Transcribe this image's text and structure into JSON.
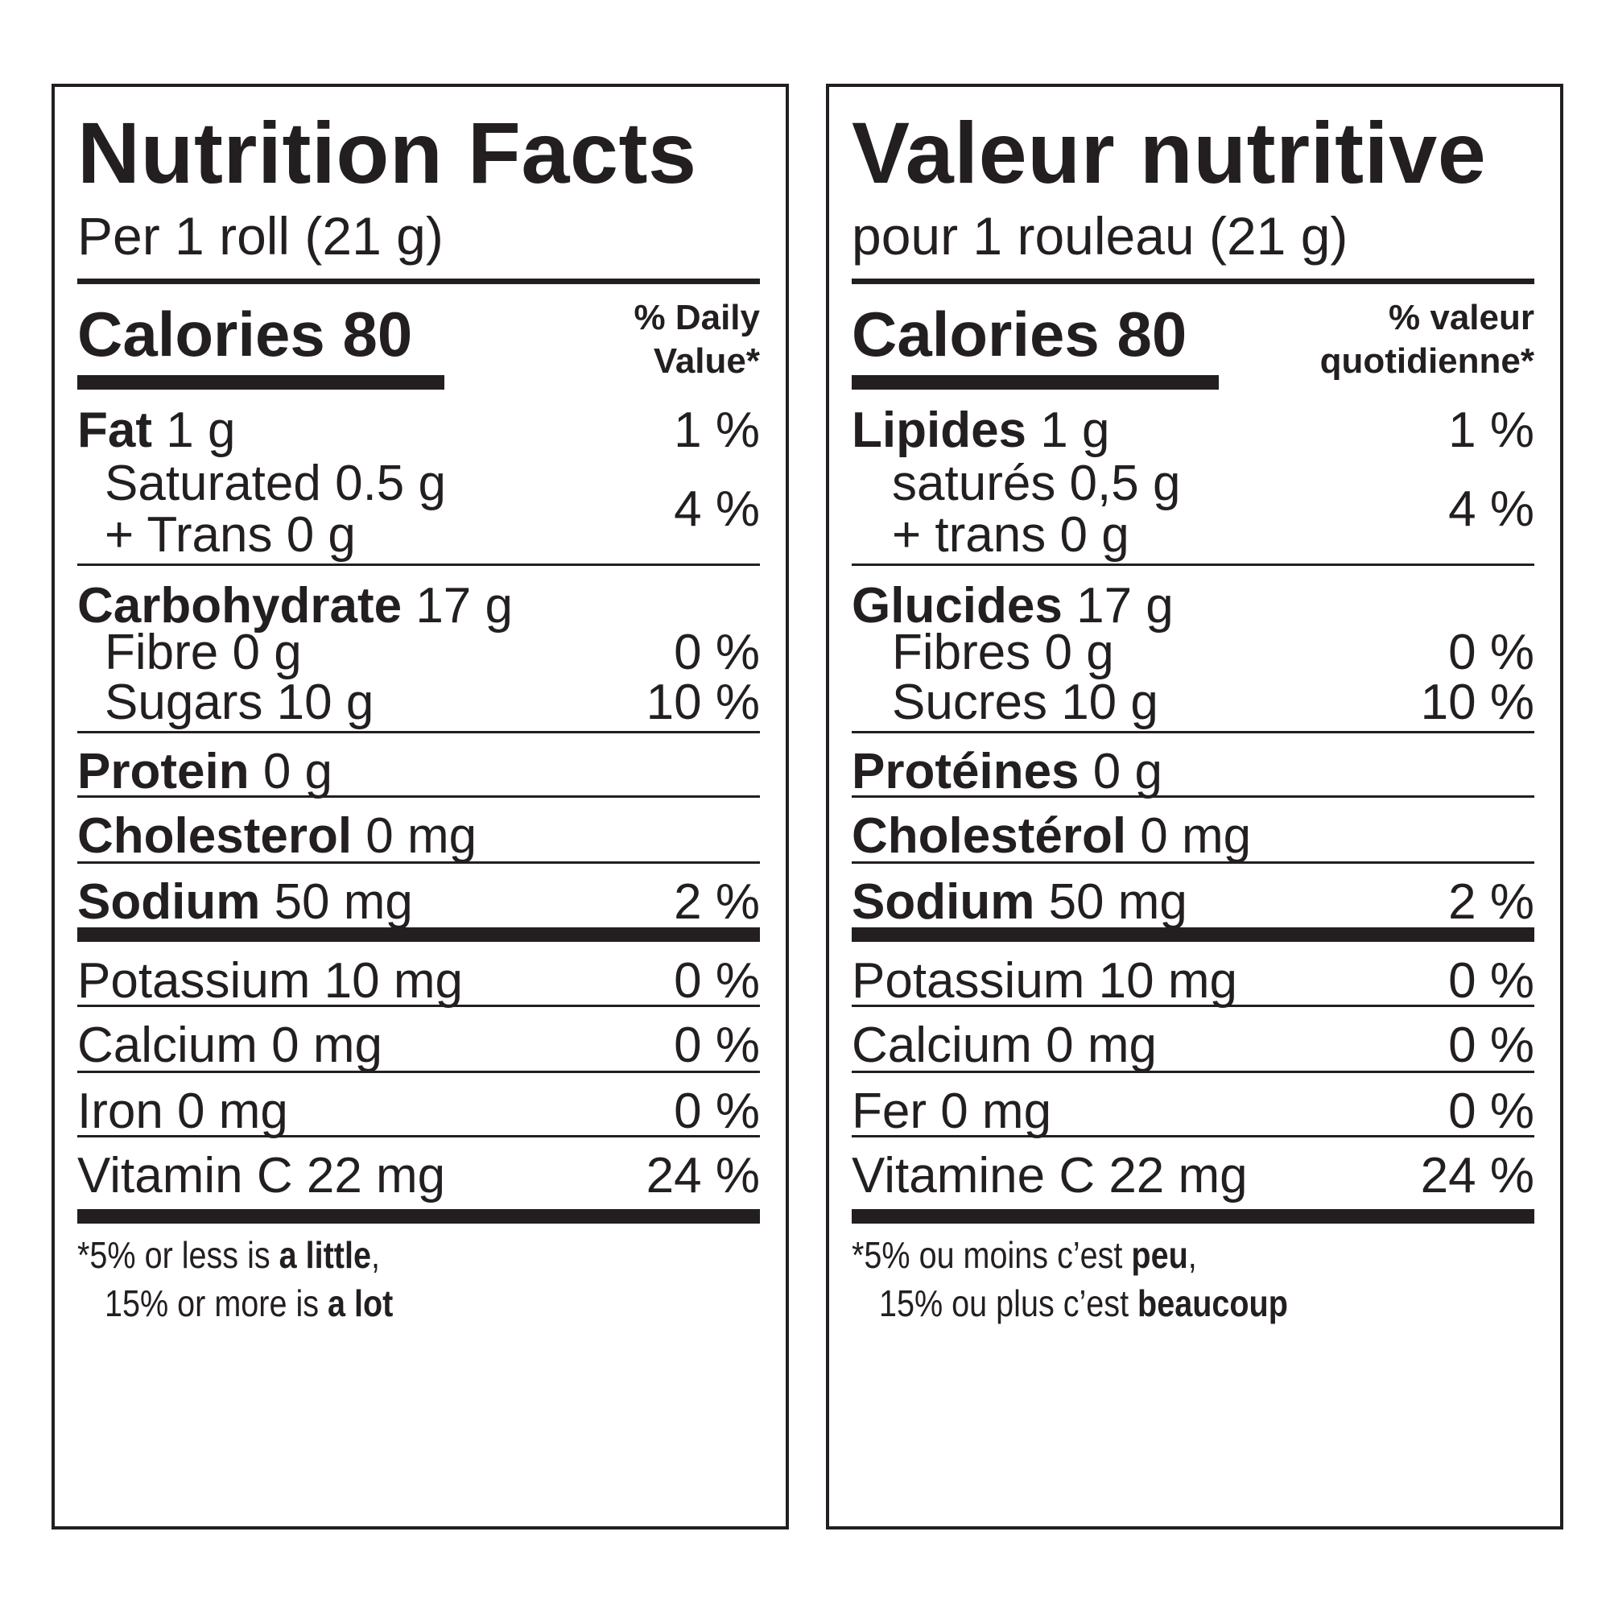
{
  "en": {
    "title": "Nutrition Facts",
    "serving": "Per 1 roll (21 g)",
    "calories": "Calories 80",
    "dv_header": [
      "% Daily",
      "Value*"
    ],
    "fat": {
      "label": "Fat",
      "amount": "1 g",
      "dv": "1 %"
    },
    "saturated": "Saturated 0.5 g",
    "trans": "+ Trans 0 g",
    "sat_trans_dv": "4 %",
    "carbohydrate": {
      "label": "Carbohydrate",
      "amount": "17 g"
    },
    "fibre": {
      "text": "Fibre 0 g",
      "dv": "0 %"
    },
    "sugars": {
      "text": "Sugars 10 g",
      "dv": "10 %"
    },
    "protein": {
      "label": "Protein",
      "amount": "0 g"
    },
    "cholesterol": {
      "label": "Cholesterol",
      "amount": "0 mg"
    },
    "sodium": {
      "label": "Sodium",
      "amount": "50 mg",
      "dv": "2 %"
    },
    "potassium": {
      "text": "Potassium 10 mg",
      "dv": "0 %"
    },
    "calcium": {
      "text": "Calcium 0 mg",
      "dv": "0 %"
    },
    "iron": {
      "text": "Iron 0 mg",
      "dv": "0 %"
    },
    "vitamin_c": {
      "text": "Vitamin C 22 mg",
      "dv": "24 %"
    },
    "footnote": {
      "l1_pre": "*5% or less is ",
      "l1_bold": "a little",
      "l1_post": ",",
      "l2_pre": "15% or more is ",
      "l2_bold": "a lot"
    }
  },
  "fr": {
    "title": "Valeur nutritive",
    "serving": "pour 1 rouleau (21 g)",
    "calories": "Calories 80",
    "dv_header": [
      "% valeur",
      "quotidienne*"
    ],
    "fat": {
      "label": "Lipides",
      "amount": "1 g",
      "dv": "1 %"
    },
    "saturated": "saturés 0,5 g",
    "trans": "+ trans 0 g",
    "sat_trans_dv": "4 %",
    "carbohydrate": {
      "label": "Glucides",
      "amount": "17 g"
    },
    "fibre": {
      "text": "Fibres 0 g",
      "dv": "0 %"
    },
    "sugars": {
      "text": "Sucres 10 g",
      "dv": "10 %"
    },
    "protein": {
      "label": "Protéines",
      "amount": "0 g"
    },
    "cholesterol": {
      "label": "Cholestérol",
      "amount": "0 mg"
    },
    "sodium": {
      "label": "Sodium",
      "amount": "50 mg",
      "dv": "2 %"
    },
    "potassium": {
      "text": "Potassium 10 mg",
      "dv": "0 %"
    },
    "calcium": {
      "text": "Calcium 0 mg",
      "dv": "0 %"
    },
    "iron": {
      "text": "Fer 0 mg",
      "dv": "0 %"
    },
    "vitamin_c": {
      "text": "Vitamine C 22 mg",
      "dv": "24 %"
    },
    "footnote": {
      "l1_pre": "*5% ou moins c’est ",
      "l1_bold": "peu",
      "l1_post": ",",
      "l2_pre": "15% ou plus c’est ",
      "l2_bold": "beaucoup"
    }
  }
}
